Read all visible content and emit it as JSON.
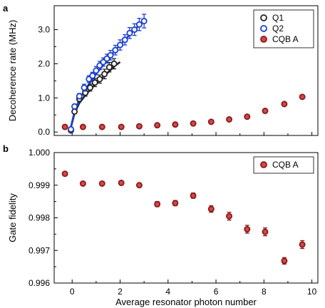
{
  "chart_data": [
    {
      "panel": "a",
      "type": "scatter",
      "ylabel": "Decoherence rate (MHz)",
      "xlabel": "",
      "xlim": [
        -0.75,
        10.25
      ],
      "ylim": [
        -0.1,
        3.7
      ],
      "yticks": [
        "0.0",
        "1.0",
        "2.0",
        "3.0"
      ],
      "ytick_values": [
        0.0,
        1.0,
        2.0,
        3.0
      ],
      "legend_position": "top-right",
      "series": [
        {
          "name": "Q1",
          "color": "#222222",
          "fill": "#ffffff",
          "x": [
            -0.05,
            0.1,
            0.3,
            0.55,
            0.75,
            0.95,
            1.15,
            1.35,
            1.55,
            1.75
          ],
          "y": [
            0.05,
            0.6,
            0.97,
            1.15,
            1.3,
            1.45,
            1.55,
            1.7,
            1.9,
            2.0
          ],
          "err": [
            0.05,
            0.06,
            0.08,
            0.1,
            0.1,
            0.12,
            0.12,
            0.14,
            0.14,
            0.15
          ],
          "fit_x": [
            -0.1,
            0.1,
            0.3,
            0.6,
            0.9,
            1.2,
            1.5,
            1.8,
            2.0
          ],
          "fit_y": [
            0.0,
            0.55,
            0.85,
            1.12,
            1.35,
            1.55,
            1.75,
            1.95,
            2.05
          ]
        },
        {
          "name": "Q2",
          "color": "#1a3fd0",
          "fill": "#ffffff",
          "x": [
            -0.05,
            0.1,
            0.3,
            0.5,
            0.7,
            0.85,
            1.0,
            1.15,
            1.3,
            1.45,
            1.6,
            1.8,
            2.0,
            2.2,
            2.4,
            2.6,
            2.8,
            3.0
          ],
          "y": [
            0.08,
            0.75,
            1.05,
            1.3,
            1.55,
            1.65,
            1.8,
            1.95,
            2.05,
            2.15,
            2.25,
            2.4,
            2.55,
            2.7,
            2.9,
            3.0,
            3.15,
            3.25
          ],
          "err": [
            0.05,
            0.06,
            0.08,
            0.1,
            0.1,
            0.1,
            0.12,
            0.12,
            0.12,
            0.13,
            0.14,
            0.14,
            0.15,
            0.15,
            0.16,
            0.17,
            0.18,
            0.2
          ],
          "fit_x": [
            -0.1,
            0.1,
            0.3,
            0.6,
            1.0,
            1.4,
            1.8,
            2.2,
            2.6,
            3.0
          ],
          "fit_y": [
            0.0,
            0.6,
            0.95,
            1.3,
            1.7,
            2.05,
            2.4,
            2.7,
            3.0,
            3.25
          ]
        },
        {
          "name": "CQB A",
          "color": "#8b1a1a",
          "fill": "#d24848",
          "x": [
            -0.3,
            0.45,
            1.25,
            2.05,
            2.8,
            3.55,
            4.3,
            5.05,
            5.8,
            6.55,
            7.3,
            8.05,
            8.85,
            9.6
          ],
          "y": [
            0.15,
            0.15,
            0.15,
            0.15,
            0.17,
            0.2,
            0.22,
            0.25,
            0.3,
            0.37,
            0.45,
            0.62,
            0.82,
            1.03
          ],
          "err": [
            0.0,
            0.0,
            0.0,
            0.0,
            0.0,
            0.0,
            0.0,
            0.0,
            0.0,
            0.0,
            0.02,
            0.03,
            0.03,
            0.03
          ]
        }
      ]
    },
    {
      "panel": "b",
      "type": "scatter",
      "ylabel": "Gate fidelity",
      "xlabel": "Average resonator photon number",
      "xlim": [
        -0.75,
        10.25
      ],
      "ylim": [
        0.996,
        1.0
      ],
      "yticks": [
        "0.996",
        "0.997",
        "0.998",
        "0.999",
        "1.000"
      ],
      "ytick_values": [
        0.996,
        0.997,
        0.998,
        0.999,
        1.0
      ],
      "xticks": [
        "0",
        "2",
        "4",
        "6",
        "8",
        "10"
      ],
      "xtick_values": [
        0,
        2,
        4,
        6,
        8,
        10
      ],
      "legend_position": "top-right",
      "series": [
        {
          "name": "CQB A",
          "color": "#8b1a1a",
          "fill": "#d24848",
          "x": [
            -0.3,
            0.45,
            1.25,
            2.05,
            2.8,
            3.55,
            4.3,
            5.05,
            5.8,
            6.55,
            7.3,
            8.05,
            8.85,
            9.6
          ],
          "y": [
            0.99935,
            0.99905,
            0.99905,
            0.99907,
            0.999,
            0.99842,
            0.99845,
            0.99868,
            0.99827,
            0.99805,
            0.99765,
            0.99757,
            0.99668,
            0.99718
          ],
          "err": [
            3e-05,
            3e-05,
            5e-05,
            5e-05,
            6e-05,
            8e-05,
            8e-05,
            8e-05,
            0.0001,
            0.00012,
            0.00012,
            0.00012,
            0.0001,
            0.00012
          ]
        }
      ]
    }
  ]
}
